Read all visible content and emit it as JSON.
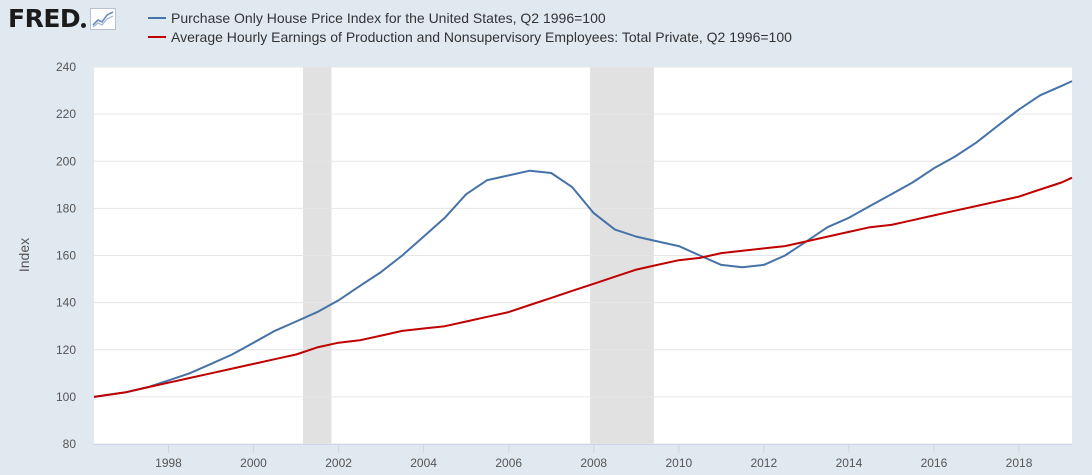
{
  "header": {
    "logo_text": "FRED",
    "logo_icon": "trend-graph-icon"
  },
  "chart_data": {
    "type": "line",
    "title": "",
    "xlabel": "",
    "ylabel": "Index",
    "xlim": [
      "1996-04-01",
      "2019-04-01"
    ],
    "ylim": [
      80,
      240
    ],
    "y_ticks": [
      80,
      100,
      120,
      140,
      160,
      180,
      200,
      220,
      240
    ],
    "x_ticks": [
      "1998",
      "2000",
      "2002",
      "2004",
      "2006",
      "2008",
      "2010",
      "2012",
      "2014",
      "2016",
      "2018"
    ],
    "grid": "horizontal",
    "legend_position": "top-left",
    "recessions": [
      {
        "start": "2001-03-01",
        "end": "2001-11-01"
      },
      {
        "start": "2007-12-01",
        "end": "2009-06-01"
      }
    ],
    "series": [
      {
        "name": "Purchase Only House Price Index for the United States, Q2 1996=100",
        "color": "#4572a7",
        "x": [
          "1996-04-01",
          "1997-01-01",
          "1997-07-01",
          "1998-01-01",
          "1998-07-01",
          "1999-01-01",
          "1999-07-01",
          "2000-01-01",
          "2000-07-01",
          "2001-01-01",
          "2001-07-01",
          "2002-01-01",
          "2002-07-01",
          "2003-01-01",
          "2003-07-01",
          "2004-01-01",
          "2004-07-01",
          "2005-01-01",
          "2005-07-01",
          "2006-01-01",
          "2006-07-01",
          "2007-01-01",
          "2007-07-01",
          "2008-01-01",
          "2008-07-01",
          "2009-01-01",
          "2009-07-01",
          "2010-01-01",
          "2010-07-01",
          "2011-01-01",
          "2011-07-01",
          "2012-01-01",
          "2012-07-01",
          "2013-01-01",
          "2013-07-01",
          "2014-01-01",
          "2014-07-01",
          "2015-01-01",
          "2015-07-01",
          "2016-01-01",
          "2016-07-01",
          "2017-01-01",
          "2017-07-01",
          "2018-01-01",
          "2018-07-01",
          "2019-01-01",
          "2019-04-01"
        ],
        "values": [
          100,
          102,
          104,
          107,
          110,
          114,
          118,
          123,
          128,
          132,
          136,
          141,
          147,
          153,
          160,
          168,
          176,
          186,
          192,
          194,
          196,
          195,
          189,
          178,
          171,
          168,
          166,
          164,
          160,
          156,
          155,
          156,
          160,
          166,
          172,
          176,
          181,
          186,
          191,
          197,
          202,
          208,
          215,
          222,
          228,
          232,
          234
        ]
      },
      {
        "name": "Average Hourly Earnings of Production and Nonsupervisory Employees: Total Private, Q2 1996=100",
        "color": "#c00000",
        "x": [
          "1996-04-01",
          "1997-01-01",
          "1997-07-01",
          "1998-01-01",
          "1998-07-01",
          "1999-01-01",
          "1999-07-01",
          "2000-01-01",
          "2000-07-01",
          "2001-01-01",
          "2001-07-01",
          "2002-01-01",
          "2002-07-01",
          "2003-01-01",
          "2003-07-01",
          "2004-01-01",
          "2004-07-01",
          "2005-01-01",
          "2005-07-01",
          "2006-01-01",
          "2006-07-01",
          "2007-01-01",
          "2007-07-01",
          "2008-01-01",
          "2008-07-01",
          "2009-01-01",
          "2009-07-01",
          "2010-01-01",
          "2010-07-01",
          "2011-01-01",
          "2011-07-01",
          "2012-01-01",
          "2012-07-01",
          "2013-01-01",
          "2013-07-01",
          "2014-01-01",
          "2014-07-01",
          "2015-01-01",
          "2015-07-01",
          "2016-01-01",
          "2016-07-01",
          "2017-01-01",
          "2017-07-01",
          "2018-01-01",
          "2018-07-01",
          "2019-01-01",
          "2019-04-01"
        ],
        "values": [
          100,
          102,
          104,
          106,
          108,
          110,
          112,
          114,
          116,
          118,
          121,
          123,
          124,
          126,
          128,
          129,
          130,
          132,
          134,
          136,
          139,
          142,
          145,
          148,
          151,
          154,
          156,
          158,
          159,
          161,
          162,
          163,
          164,
          166,
          168,
          170,
          172,
          173,
          175,
          177,
          179,
          181,
          183,
          185,
          188,
          191,
          193
        ]
      }
    ]
  }
}
